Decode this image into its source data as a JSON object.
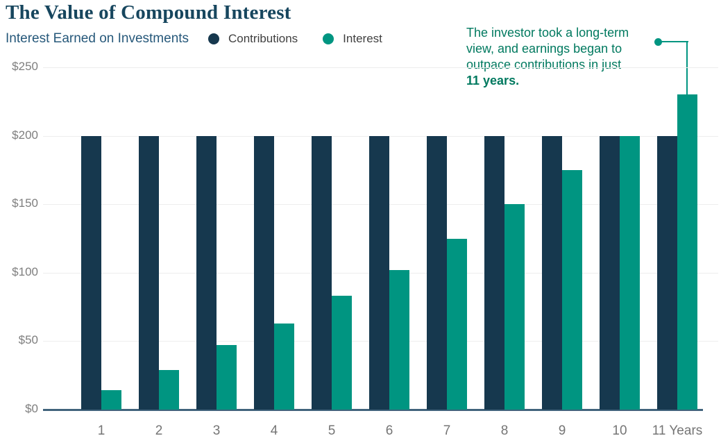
{
  "header": {
    "title": "The Value of Compound Interest",
    "subtitle": "Interest Earned on Investments"
  },
  "legend": [
    {
      "label": "Contributions",
      "color": "#16384e"
    },
    {
      "label": "Interest",
      "color": "#009581"
    }
  ],
  "annotation": {
    "lines": [
      "The investor took a long-term",
      "view, and earnings began to",
      "outpace contributions in just"
    ],
    "bold_line": "11 years."
  },
  "colors": {
    "contributions": "#16384e",
    "interest": "#009581",
    "annotation_text": "#00795f",
    "title_text": "#17465e",
    "subtitle_text": "#26587a",
    "axis_line": "#41637c",
    "grid_line": "#ededed",
    "tick_text": "#7e7e7e"
  },
  "chart_data": {
    "type": "bar",
    "title": "The Value of Compound Interest",
    "subtitle": "Interest Earned on Investments",
    "categories": [
      "1",
      "2",
      "3",
      "4",
      "5",
      "6",
      "7",
      "8",
      "9",
      "10",
      "11 Years"
    ],
    "series": [
      {
        "name": "Contributions",
        "color": "#16384e",
        "values": [
          200,
          200,
          200,
          200,
          200,
          200,
          200,
          200,
          200,
          200,
          200
        ]
      },
      {
        "name": "Interest",
        "color": "#009581",
        "values": [
          14,
          29,
          47,
          63,
          83,
          102,
          125,
          150,
          175,
          200,
          230
        ]
      }
    ],
    "xlabel": "Years",
    "ylabel": "",
    "ylim": [
      0,
      250
    ],
    "y_ticks": [
      {
        "label": "$0",
        "value": 0
      },
      {
        "label": "$50",
        "value": 50
      },
      {
        "label": "$100",
        "value": 100
      },
      {
        "label": "$150",
        "value": 150
      },
      {
        "label": "$200",
        "value": 200
      },
      {
        "label": "$250",
        "value": 250
      }
    ],
    "grid": true,
    "legend_position": "top",
    "annotation_target": {
      "series": "Interest",
      "category": "11 Years"
    }
  }
}
